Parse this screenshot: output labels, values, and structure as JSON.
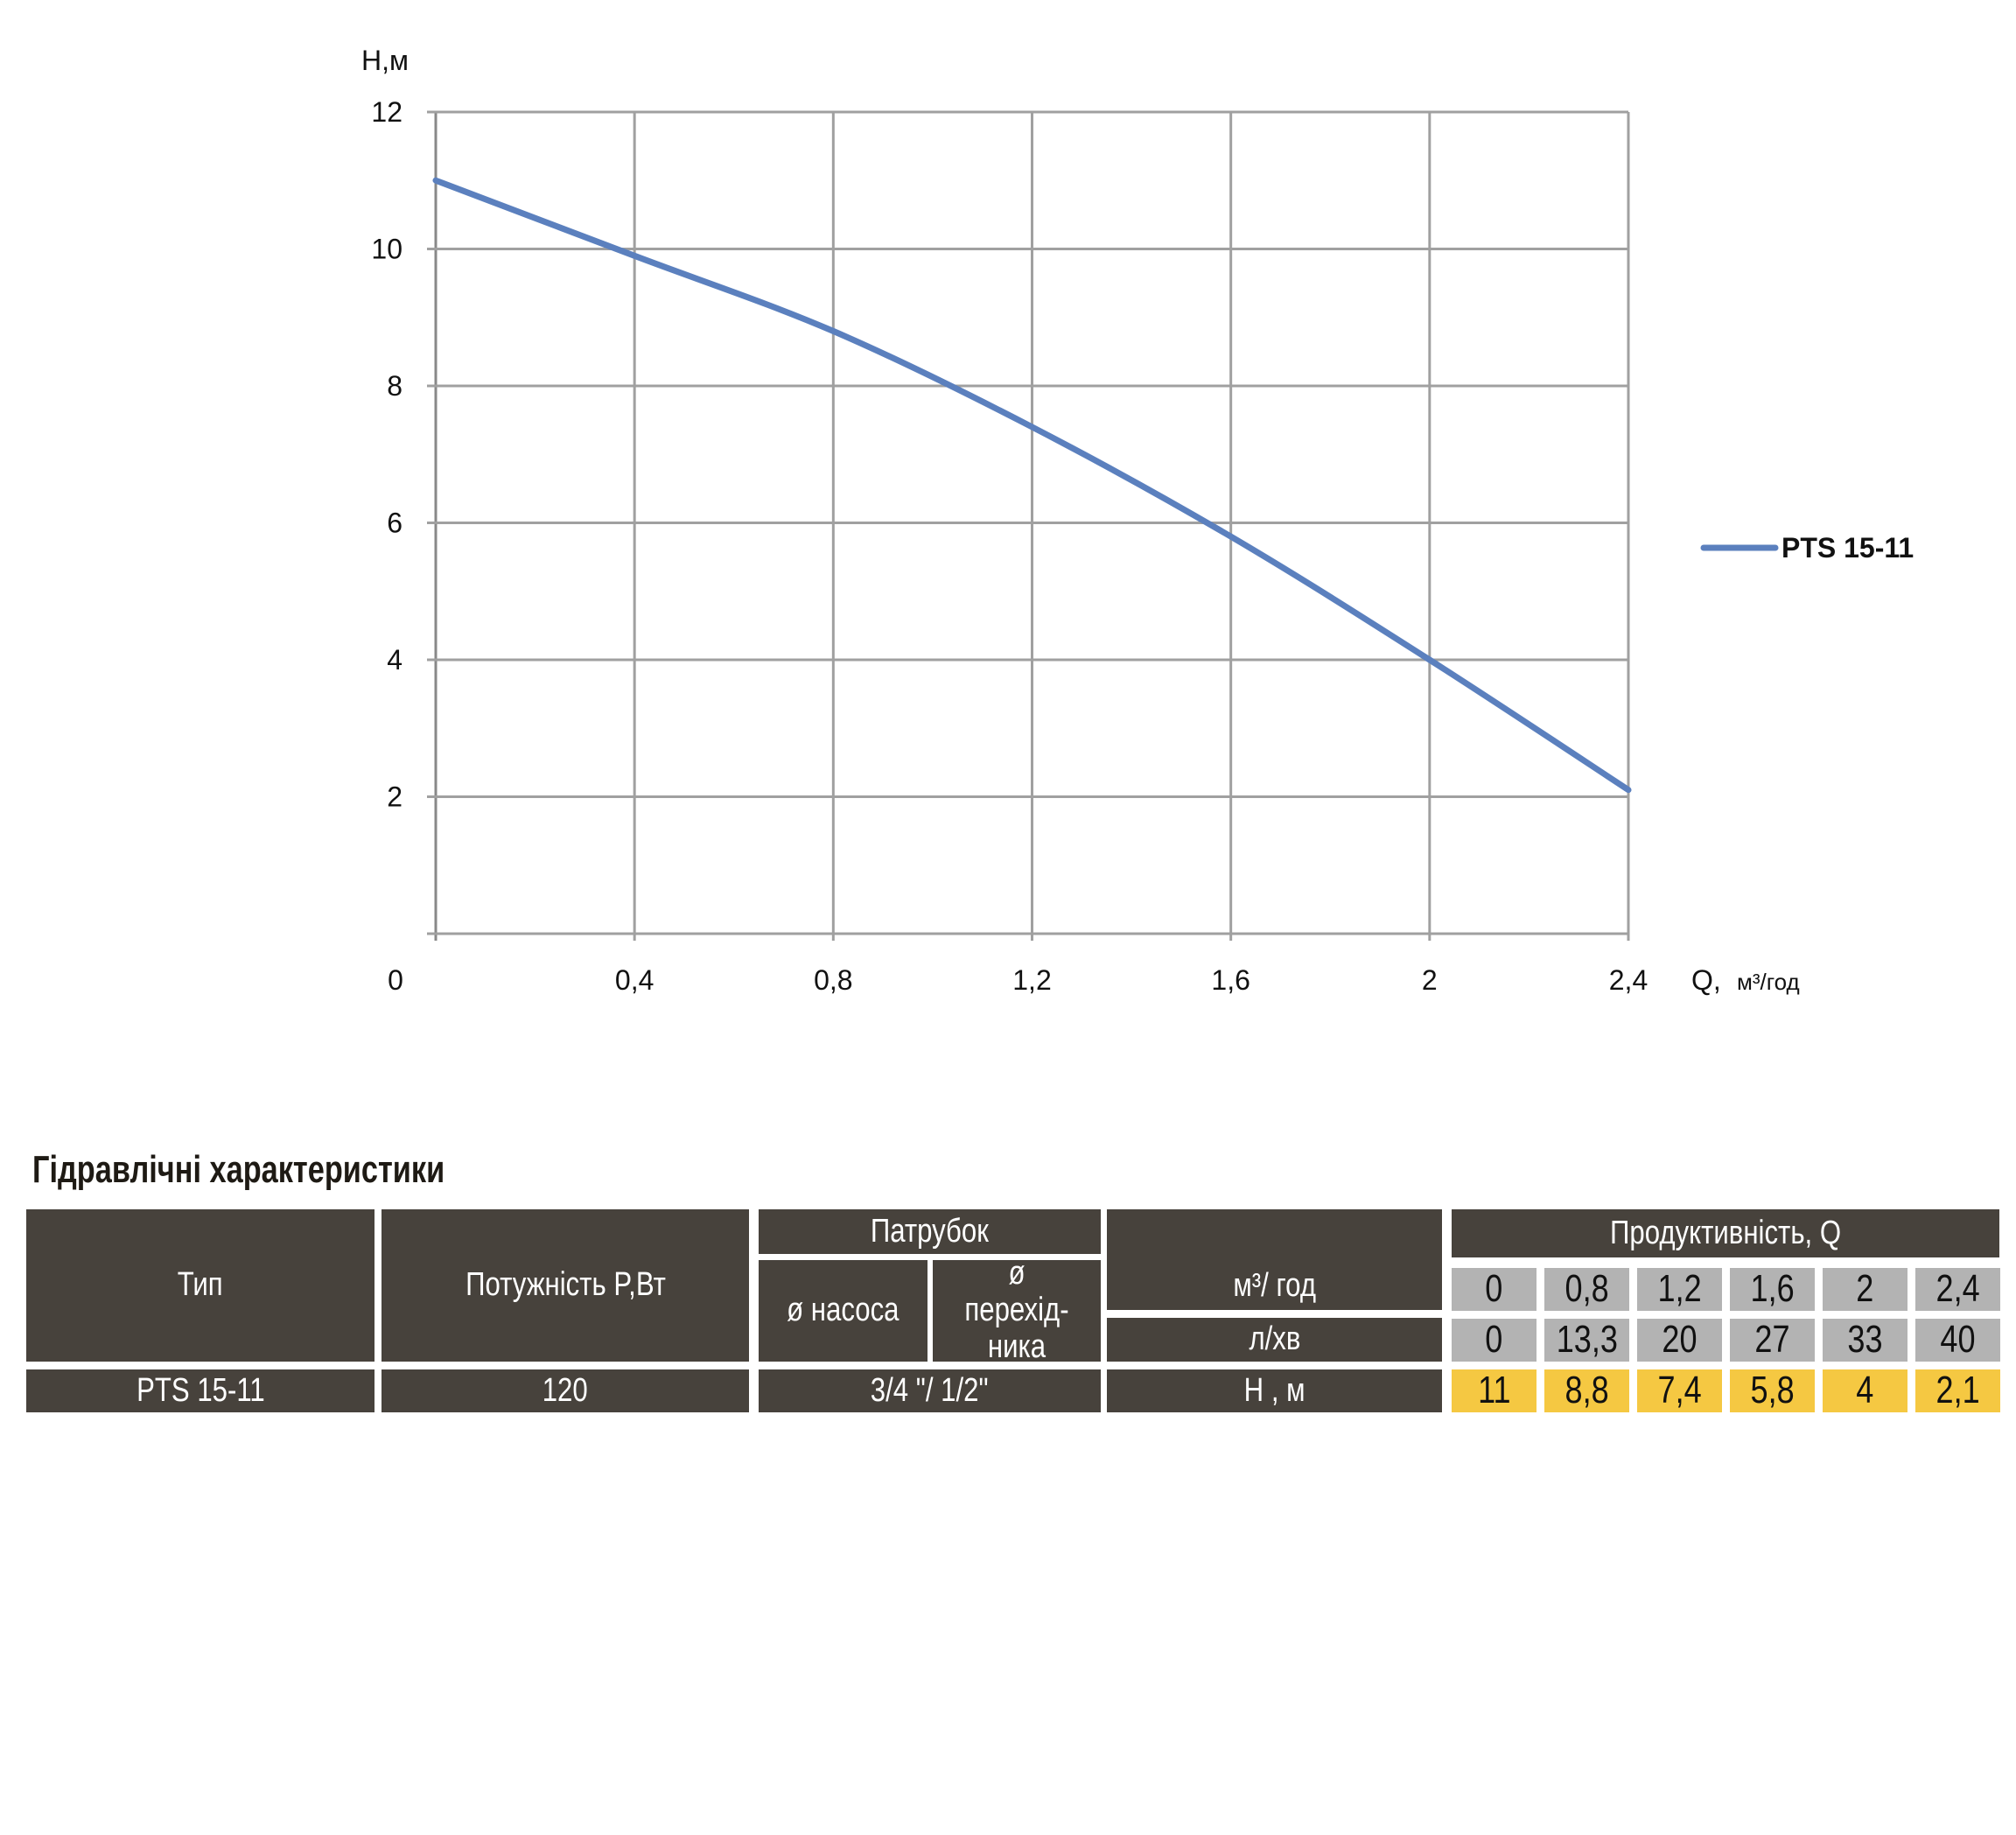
{
  "chart_data": {
    "type": "line",
    "ylabel": "H,м",
    "xlabel": "Q,",
    "xlabel_unit": "м³/год",
    "x_ticks": [
      "0",
      "0,4",
      "0,8",
      "1,2",
      "1,6",
      "2",
      "2,4"
    ],
    "y_ticks": [
      "2",
      "4",
      "6",
      "8",
      "10",
      "12"
    ],
    "xlim": [
      0,
      2.4
    ],
    "ylim": [
      0,
      12
    ],
    "grid": true,
    "legend_position": "right",
    "series": [
      {
        "name": "PTS 15-11",
        "color": "#5b80be",
        "x": [
          0,
          0.4,
          0.8,
          1.2,
          1.6,
          2.0,
          2.4
        ],
        "y": [
          11,
          9.9,
          8.8,
          7.4,
          5.8,
          4.0,
          2.1
        ]
      }
    ]
  },
  "table": {
    "title": "Гідравлічні характеристики",
    "col_type": "Тип",
    "col_power": "Потужність  P,Вт",
    "col_nozzle": "Патрубок",
    "col_nozzle_pump": "ø насоса",
    "col_nozzle_adapter": "ø перехід-ника",
    "row_m3": "м³/ год",
    "row_lmin": "л/хв",
    "row_h": "H , м",
    "col_productivity": "Продуктивність, Q",
    "type_value": "PTS 15-11",
    "power_value": "120",
    "nozzle_value": "3/4 \"/ 1/2\"",
    "m3_values": [
      "0",
      "0,8",
      "1,2",
      "1,6",
      "2",
      "2,4"
    ],
    "lmin_values": [
      "0",
      "13,3",
      "20",
      "27",
      "33",
      "40"
    ],
    "h_values": [
      "11",
      "8,8",
      "7,4",
      "5,8",
      "4",
      "2,1"
    ]
  },
  "colors": {
    "header": "#47423c",
    "flow_cells": "#b3b3b3",
    "head_cells": "#f5c842"
  }
}
